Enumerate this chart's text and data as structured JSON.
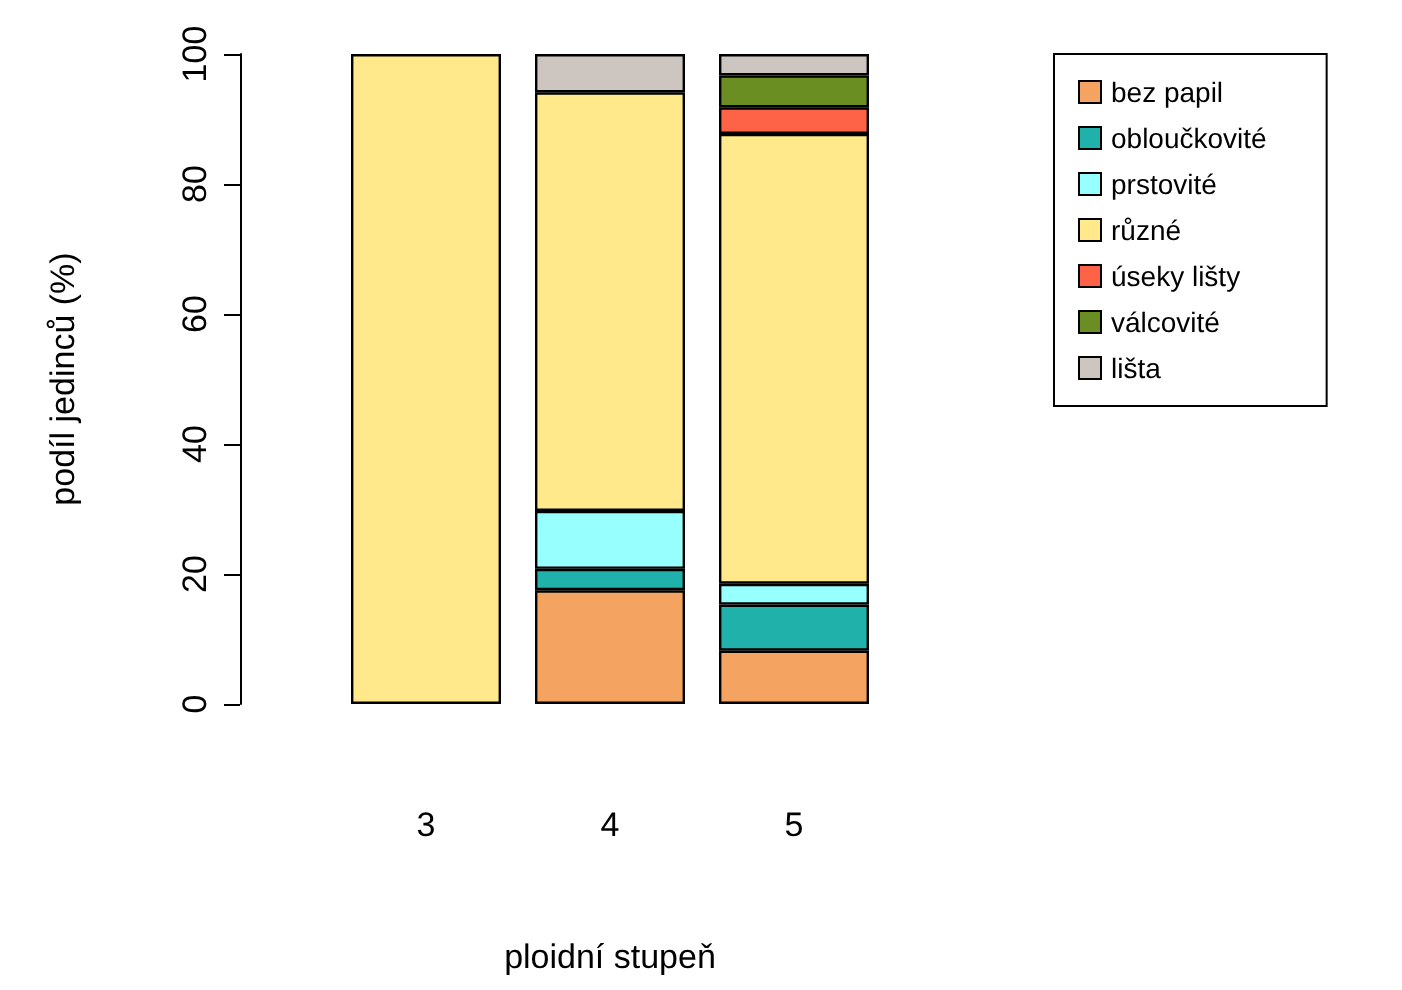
{
  "chart_data": {
    "type": "bar",
    "stacked": true,
    "xlabel": "ploidní stupeň",
    "ylabel": "podíl jedinců (%)",
    "categories": [
      "3",
      "4",
      "5"
    ],
    "series": [
      {
        "name": "bez papil",
        "color": "#f4a460",
        "values": [
          null,
          17.5,
          8.2
        ]
      },
      {
        "name": "obloučkovité",
        "color": "#20b2aa",
        "values": [
          null,
          3.3,
          7.1
        ]
      },
      {
        "name": "prstovité",
        "color": "#98ffff",
        "values": [
          null,
          8.9,
          3.2
        ]
      },
      {
        "name": "různé",
        "color": "#ffe98a",
        "values": [
          100,
          64.4,
          69.2
        ]
      },
      {
        "name": "úseky lišty",
        "color": "#ff6347",
        "values": [
          null,
          null,
          4.1
        ]
      },
      {
        "name": "válcovité",
        "color": "#6b8e23",
        "values": [
          null,
          null,
          4.9
        ]
      },
      {
        "name": "lišta",
        "color": "#cdc5bf",
        "values": [
          null,
          5.9,
          3.3
        ]
      }
    ],
    "ylim": [
      0,
      100
    ],
    "yticks": [
      0,
      20,
      40,
      60,
      80,
      100
    ],
    "grid": false,
    "legend": "top right"
  }
}
